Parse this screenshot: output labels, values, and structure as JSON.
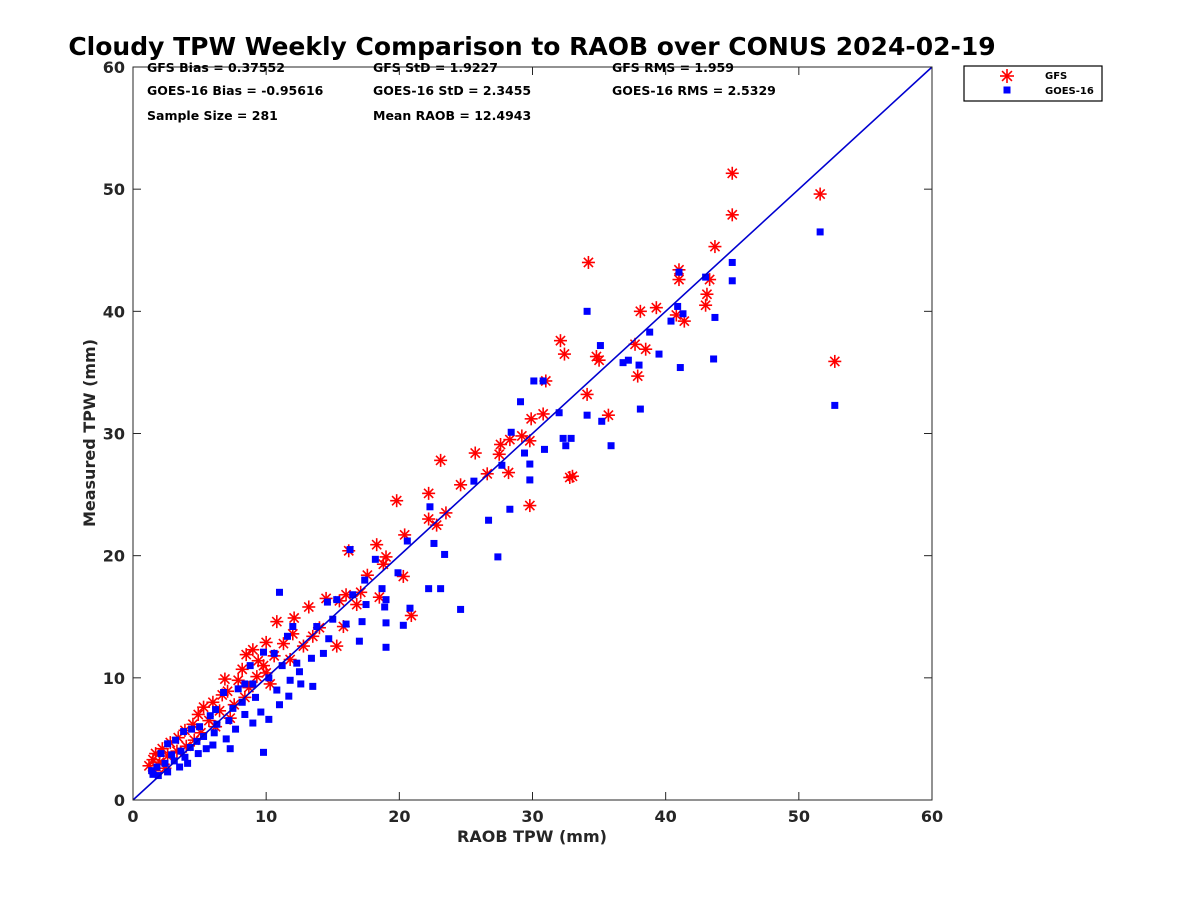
{
  "chart_data": {
    "type": "scatter",
    "title": "Cloudy TPW Weekly Comparison to RAOB over CONUS 2024-02-19",
    "xlabel": "RAOB TPW (mm)",
    "ylabel": "Measured TPW (mm)",
    "xlim": [
      0,
      60
    ],
    "ylim": [
      0,
      60
    ],
    "xticks": [
      "0",
      "10",
      "20",
      "30",
      "40",
      "50",
      "60"
    ],
    "yticks": [
      "0",
      "10",
      "20",
      "30",
      "40",
      "50",
      "60"
    ],
    "grid": false,
    "legend_position": "outside-top-right",
    "reference_line": {
      "type": "one-to-one",
      "color": "#0000d0"
    },
    "stats": [
      [
        "GFS Bias = 0.37552",
        "GFS StD = 1.9227",
        "GFS RMS = 1.959"
      ],
      [
        "GOES-16 Bias = -0.95616",
        "GOES-16 StD = 2.3455",
        "GOES-16 RMS = 2.5329"
      ],
      [
        "Sample Size = 281",
        "Mean RAOB = 12.4943",
        ""
      ]
    ],
    "series": [
      {
        "name": "GFS",
        "marker": "asterisk",
        "color": "#ff0000",
        "points": [
          [
            45.0,
            51.3
          ],
          [
            51.6,
            49.6
          ],
          [
            45.0,
            47.9
          ],
          [
            43.7,
            45.3
          ],
          [
            34.2,
            44.0
          ],
          [
            41.0,
            43.4
          ],
          [
            43.3,
            42.6
          ],
          [
            41.0,
            42.6
          ],
          [
            43.1,
            41.4
          ],
          [
            43.0,
            40.5
          ],
          [
            39.3,
            40.3
          ],
          [
            38.1,
            40.0
          ],
          [
            40.8,
            39.7
          ],
          [
            41.4,
            39.2
          ],
          [
            32.1,
            37.6
          ],
          [
            37.7,
            37.3
          ],
          [
            38.5,
            36.9
          ],
          [
            32.4,
            36.5
          ],
          [
            34.8,
            36.3
          ],
          [
            35.0,
            36.0
          ],
          [
            52.7,
            35.9
          ],
          [
            37.9,
            34.7
          ],
          [
            31.0,
            34.3
          ],
          [
            34.1,
            33.2
          ],
          [
            30.8,
            31.6
          ],
          [
            29.9,
            31.2
          ],
          [
            35.7,
            31.5
          ],
          [
            29.2,
            29.8
          ],
          [
            28.3,
            29.5
          ],
          [
            27.6,
            29.1
          ],
          [
            29.8,
            29.4
          ],
          [
            27.5,
            28.3
          ],
          [
            25.7,
            28.4
          ],
          [
            23.1,
            27.8
          ],
          [
            26.6,
            26.7
          ],
          [
            28.2,
            26.8
          ],
          [
            32.8,
            26.4
          ],
          [
            33.0,
            26.5
          ],
          [
            24.6,
            25.8
          ],
          [
            29.8,
            24.1
          ],
          [
            19.8,
            24.5
          ],
          [
            22.2,
            25.1
          ],
          [
            23.5,
            23.5
          ],
          [
            22.2,
            23.0
          ],
          [
            22.8,
            22.5
          ],
          [
            20.4,
            21.7
          ],
          [
            16.2,
            20.4
          ],
          [
            18.3,
            20.9
          ],
          [
            19.0,
            19.9
          ],
          [
            18.8,
            19.3
          ],
          [
            20.3,
            18.3
          ],
          [
            17.6,
            18.4
          ],
          [
            17.1,
            17.0
          ],
          [
            16.0,
            16.8
          ],
          [
            18.5,
            16.6
          ],
          [
            15.5,
            16.3
          ],
          [
            16.8,
            16.0
          ],
          [
            14.5,
            16.5
          ],
          [
            20.9,
            15.1
          ],
          [
            13.2,
            15.8
          ],
          [
            12.1,
            14.9
          ],
          [
            10.8,
            14.6
          ],
          [
            15.8,
            14.2
          ],
          [
            14.0,
            14.1
          ],
          [
            12.0,
            13.6
          ],
          [
            13.5,
            13.4
          ],
          [
            10.0,
            12.9
          ],
          [
            11.3,
            12.8
          ],
          [
            9.0,
            12.3
          ],
          [
            12.8,
            12.6
          ],
          [
            15.3,
            12.6
          ],
          [
            8.5,
            11.9
          ],
          [
            10.6,
            11.8
          ],
          [
            11.8,
            11.5
          ],
          [
            9.8,
            11.0
          ],
          [
            8.2,
            10.7
          ],
          [
            10.0,
            10.4
          ],
          [
            9.3,
            10.1
          ],
          [
            7.9,
            9.8
          ],
          [
            10.3,
            9.5
          ],
          [
            8.7,
            9.2
          ],
          [
            7.1,
            8.9
          ],
          [
            6.7,
            8.6
          ],
          [
            8.4,
            8.4
          ],
          [
            6.0,
            8.0
          ],
          [
            7.6,
            7.8
          ],
          [
            5.3,
            7.6
          ],
          [
            6.5,
            7.3
          ],
          [
            4.9,
            7.0
          ],
          [
            7.3,
            6.7
          ],
          [
            5.7,
            6.5
          ],
          [
            4.5,
            6.2
          ],
          [
            6.2,
            6.0
          ],
          [
            3.9,
            5.7
          ],
          [
            5.1,
            5.5
          ],
          [
            3.4,
            5.1
          ],
          [
            4.6,
            4.9
          ],
          [
            2.8,
            4.7
          ],
          [
            4.0,
            4.4
          ],
          [
            2.2,
            4.2
          ],
          [
            3.3,
            4.0
          ],
          [
            1.7,
            3.8
          ],
          [
            2.6,
            3.6
          ],
          [
            1.5,
            3.3
          ],
          [
            2.0,
            3.1
          ],
          [
            1.2,
            2.8
          ],
          [
            2.4,
            2.6
          ],
          [
            1.6,
            2.4
          ],
          [
            6.9,
            9.9
          ],
          [
            9.4,
            11.4
          ]
        ]
      },
      {
        "name": "GOES-16",
        "marker": "square",
        "color": "#0000ff",
        "points": [
          [
            51.6,
            46.5
          ],
          [
            45.0,
            44.0
          ],
          [
            41.0,
            43.2
          ],
          [
            43.0,
            42.8
          ],
          [
            45.0,
            42.5
          ],
          [
            34.1,
            40.0
          ],
          [
            40.9,
            40.4
          ],
          [
            41.3,
            39.8
          ],
          [
            40.4,
            39.2
          ],
          [
            43.7,
            39.5
          ],
          [
            38.8,
            38.3
          ],
          [
            35.1,
            37.2
          ],
          [
            39.5,
            36.5
          ],
          [
            37.2,
            36.0
          ],
          [
            43.6,
            36.1
          ],
          [
            36.8,
            35.8
          ],
          [
            38.0,
            35.6
          ],
          [
            41.1,
            35.4
          ],
          [
            30.1,
            34.3
          ],
          [
            30.8,
            34.3
          ],
          [
            52.7,
            32.3
          ],
          [
            29.1,
            32.6
          ],
          [
            38.1,
            32.0
          ],
          [
            32.0,
            31.7
          ],
          [
            34.1,
            31.5
          ],
          [
            35.2,
            31.0
          ],
          [
            32.3,
            29.6
          ],
          [
            32.9,
            29.6
          ],
          [
            32.5,
            29.0
          ],
          [
            35.9,
            29.0
          ],
          [
            28.4,
            30.1
          ],
          [
            29.4,
            28.4
          ],
          [
            30.9,
            28.7
          ],
          [
            29.8,
            27.5
          ],
          [
            27.7,
            27.4
          ],
          [
            29.8,
            26.2
          ],
          [
            25.6,
            26.1
          ],
          [
            28.3,
            23.8
          ],
          [
            26.7,
            22.9
          ],
          [
            27.4,
            19.9
          ],
          [
            22.3,
            24.0
          ],
          [
            22.6,
            21.0
          ],
          [
            23.4,
            20.1
          ],
          [
            20.6,
            21.2
          ],
          [
            22.2,
            17.3
          ],
          [
            23.1,
            17.3
          ],
          [
            24.6,
            15.6
          ],
          [
            20.8,
            15.7
          ],
          [
            19.9,
            18.6
          ],
          [
            18.2,
            19.7
          ],
          [
            16.3,
            20.5
          ],
          [
            17.4,
            18.0
          ],
          [
            18.7,
            17.3
          ],
          [
            19.0,
            16.4
          ],
          [
            17.5,
            16.0
          ],
          [
            18.9,
            15.8
          ],
          [
            16.5,
            16.8
          ],
          [
            15.3,
            16.4
          ],
          [
            14.6,
            16.2
          ],
          [
            20.3,
            14.3
          ],
          [
            19.0,
            14.5
          ],
          [
            17.2,
            14.6
          ],
          [
            16.0,
            14.4
          ],
          [
            15.0,
            14.8
          ],
          [
            13.8,
            14.2
          ],
          [
            14.7,
            13.2
          ],
          [
            17.0,
            13.0
          ],
          [
            12.0,
            14.2
          ],
          [
            11.6,
            13.4
          ],
          [
            14.3,
            12.0
          ],
          [
            19.0,
            12.5
          ],
          [
            10.6,
            12.0
          ],
          [
            12.3,
            11.2
          ],
          [
            13.4,
            11.6
          ],
          [
            11.2,
            11.0
          ],
          [
            9.8,
            12.1
          ],
          [
            8.8,
            11.0
          ],
          [
            12.5,
            10.5
          ],
          [
            10.2,
            10.0
          ],
          [
            11.8,
            9.8
          ],
          [
            12.6,
            9.5
          ],
          [
            13.5,
            9.3
          ],
          [
            9.0,
            9.5
          ],
          [
            7.9,
            9.1
          ],
          [
            10.8,
            9.0
          ],
          [
            11.7,
            8.5
          ],
          [
            9.2,
            8.4
          ],
          [
            6.8,
            8.8
          ],
          [
            8.2,
            8.0
          ],
          [
            11.0,
            7.8
          ],
          [
            7.5,
            7.5
          ],
          [
            9.6,
            7.2
          ],
          [
            6.2,
            7.4
          ],
          [
            8.4,
            7.0
          ],
          [
            5.8,
            6.9
          ],
          [
            10.2,
            6.6
          ],
          [
            7.2,
            6.5
          ],
          [
            9.0,
            6.3
          ],
          [
            6.3,
            6.2
          ],
          [
            5.0,
            6.0
          ],
          [
            7.7,
            5.8
          ],
          [
            4.4,
            5.8
          ],
          [
            6.1,
            5.5
          ],
          [
            5.3,
            5.2
          ],
          [
            3.8,
            5.6
          ],
          [
            7.0,
            5.0
          ],
          [
            4.8,
            4.8
          ],
          [
            6.0,
            4.5
          ],
          [
            3.2,
            4.9
          ],
          [
            4.3,
            4.3
          ],
          [
            5.5,
            4.2
          ],
          [
            2.6,
            4.6
          ],
          [
            3.6,
            4.0
          ],
          [
            7.3,
            4.2
          ],
          [
            9.8,
            3.9
          ],
          [
            4.9,
            3.8
          ],
          [
            2.9,
            3.7
          ],
          [
            3.9,
            3.5
          ],
          [
            2.1,
            3.8
          ],
          [
            3.1,
            3.2
          ],
          [
            4.1,
            3.0
          ],
          [
            2.4,
            3.0
          ],
          [
            1.8,
            2.7
          ],
          [
            3.5,
            2.7
          ],
          [
            1.4,
            2.4
          ],
          [
            2.6,
            2.3
          ],
          [
            1.5,
            2.1
          ],
          [
            1.9,
            2.0
          ],
          [
            11.0,
            17.0
          ],
          [
            8.4,
            9.5
          ]
        ]
      }
    ]
  }
}
